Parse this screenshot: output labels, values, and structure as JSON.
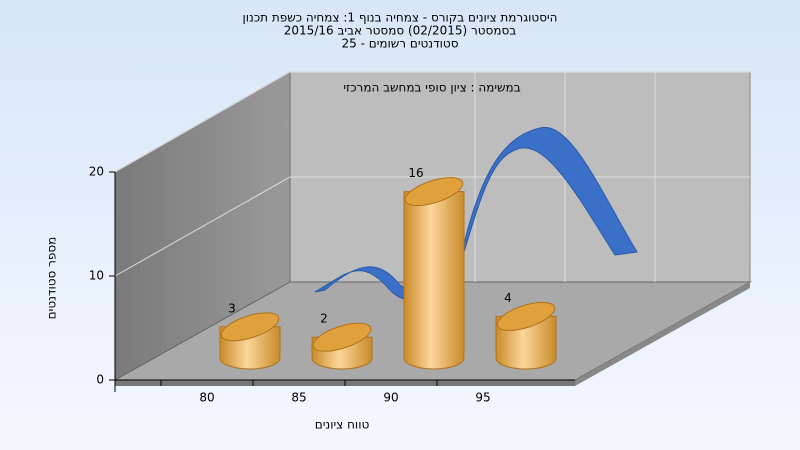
{
  "chart_data": {
    "type": "bar",
    "title": [
      "היסטוגרמת ציונים בקורס - צמחיה בנוף 1: צמחיה כשפת תכנון",
      "בסמסטר (02/2015) סמסטר אביב 2015/16",
      "סטודנטים רשומים - 25"
    ],
    "annotation": "במשימה : ציון סופי במחשב המרכזי",
    "x_label": "טווח ציונים",
    "y_label": "מספר סטודנטים",
    "categories": [
      "80",
      "85",
      "90",
      "95"
    ],
    "values": [
      3,
      2,
      16,
      4
    ],
    "color": "#e8a640",
    "ylim": [
      0,
      20
    ],
    "yticks": [
      0,
      10,
      20
    ],
    "grid": true
  }
}
